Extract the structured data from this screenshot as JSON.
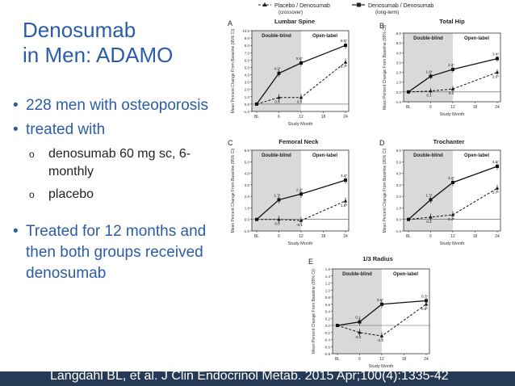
{
  "slide": {
    "title_line1": "Denosumab",
    "title_line2": "in Men: ADAMO",
    "bullets": [
      "228 men with osteoporosis",
      "treated with",
      "Treated for 12 months and then both groups received denosumab"
    ],
    "sub_bullets": [
      "denosumab 60 mg sc, 6-monthly",
      "placebo"
    ],
    "citation": "Langdahl BL, et al. J Clin Endocrinol Metab. 2015 Apr;100(4):1335-42"
  },
  "legend": {
    "placebo": "Placebo / Denosumab",
    "placebo_sub": "(crossover)",
    "denosumab": "Denosumab / Denosumab",
    "denosumab_sub": "(long-term)"
  },
  "chart_data": [
    {
      "type": "line",
      "panel": "A",
      "title": "Lumbar Spine",
      "xlabel": "Study Month",
      "ylabel": "Mean Percent Change From Baseline (95% CI)",
      "x": [
        "BL",
        "6",
        "12",
        "18",
        "24"
      ],
      "ylim": [
        -1,
        10
      ],
      "yticks": [
        -1,
        0,
        1,
        2,
        3,
        4,
        5,
        6,
        7,
        8,
        9,
        10
      ],
      "phase_labels": [
        "Double-blind",
        "Open-label"
      ],
      "series": [
        {
          "name": "Placebo / Denosumab",
          "x": [
            0,
            6,
            12,
            24
          ],
          "y": [
            0,
            0.9,
            0.9,
            5.7
          ],
          "labels": [
            "",
            "0.9",
            "0.9",
            "5.7*"
          ]
        },
        {
          "name": "Denosumab / Denosumab",
          "x": [
            0,
            6,
            12,
            24
          ],
          "y": [
            0,
            4.2,
            5.6,
            8.0
          ],
          "labels": [
            "",
            "4.2*",
            "5.6*",
            "8.0*"
          ]
        }
      ]
    },
    {
      "type": "line",
      "panel": "B",
      "title": "Total Hip",
      "xlabel": "Study Month",
      "ylabel": "Mean Percent Change From Baseline (95% CI)",
      "x": [
        "BL",
        "6",
        "12",
        "18",
        "24"
      ],
      "ylim": [
        -1,
        6
      ],
      "yticks": [
        -1,
        0,
        1,
        2,
        3,
        4,
        5,
        6
      ],
      "phase_labels": [
        "Double-blind",
        "Open-label"
      ],
      "series": [
        {
          "name": "Placebo / Denosumab",
          "x": [
            0,
            6,
            12,
            24
          ],
          "y": [
            0,
            0.1,
            0.3,
            2.0
          ],
          "labels": [
            "",
            "0.1",
            "0.3",
            "2.0*"
          ]
        },
        {
          "name": "Denosumab / Denosumab",
          "x": [
            0,
            6,
            12,
            24
          ],
          "y": [
            0,
            1.6,
            2.3,
            3.4
          ],
          "labels": [
            "",
            "1.6*",
            "2.3*",
            "3.4*"
          ]
        }
      ]
    },
    {
      "type": "line",
      "panel": "C",
      "title": "Femoral Neck",
      "xlabel": "Study Month",
      "ylabel": "Mean Percent Change From Baseline (95% CI)",
      "x": [
        "BL",
        "6",
        "12",
        "18",
        "24"
      ],
      "ylim": [
        -1,
        6
      ],
      "yticks": [
        -1,
        0,
        1,
        2,
        3,
        4,
        5,
        6
      ],
      "phase_labels": [
        "Double-blind",
        "Open-label"
      ],
      "series": [
        {
          "name": "Placebo / Denosumab",
          "x": [
            0,
            6,
            12,
            24
          ],
          "y": [
            0,
            0.0,
            -0.1,
            1.6
          ],
          "labels": [
            "",
            "0.0",
            "-0.1",
            "1.6*"
          ]
        },
        {
          "name": "Denosumab / Denosumab",
          "x": [
            0,
            6,
            12,
            24
          ],
          "y": [
            0,
            1.7,
            2.2,
            3.4
          ],
          "labels": [
            "",
            "1.7*",
            "2.2*",
            "3.4*"
          ]
        }
      ]
    },
    {
      "type": "line",
      "panel": "D",
      "title": "Trochanter",
      "xlabel": "Study Month",
      "ylabel": "Mean Percent Change From Baseline (95% CI)",
      "x": [
        "BL",
        "6",
        "12",
        "18",
        "24"
      ],
      "ylim": [
        -1,
        6
      ],
      "yticks": [
        -1,
        0,
        1,
        2,
        3,
        4,
        5,
        6
      ],
      "phase_labels": [
        "Double-blind",
        "Open-label"
      ],
      "series": [
        {
          "name": "Placebo / Denosumab",
          "x": [
            0,
            6,
            12,
            24
          ],
          "y": [
            0,
            0.2,
            0.4,
            2.7
          ],
          "labels": [
            "",
            "0.2",
            "0.4*",
            "2.7*"
          ]
        },
        {
          "name": "Denosumab / Denosumab",
          "x": [
            0,
            6,
            12,
            24
          ],
          "y": [
            0,
            1.7,
            3.2,
            4.6
          ],
          "labels": [
            "",
            "1.7*",
            "3.2*",
            "4.6*"
          ]
        }
      ]
    },
    {
      "type": "line",
      "panel": "E",
      "title": "1/3 Radius",
      "xlabel": "Study Month",
      "ylabel": "Mean Percent Change From Baseline (95% CI)",
      "x": [
        "BL",
        "6",
        "12",
        "18",
        "24"
      ],
      "ylim": [
        -0.8,
        1.6
      ],
      "yticks": [
        -0.8,
        -0.6,
        -0.4,
        -0.2,
        0.0,
        0.2,
        0.4,
        0.6,
        0.8,
        1.0,
        1.2,
        1.4,
        1.6
      ],
      "phase_labels": [
        "Double-blind",
        "Open-label"
      ],
      "series": [
        {
          "name": "Placebo / Denosumab",
          "x": [
            0,
            6,
            12,
            24
          ],
          "y": [
            0,
            -0.2,
            -0.3,
            0.6
          ],
          "labels": [
            "",
            "-0.2",
            "-0.3",
            "0.6*"
          ]
        },
        {
          "name": "Denosumab / Denosumab",
          "x": [
            0,
            6,
            12,
            24
          ],
          "y": [
            0,
            0.1,
            0.6,
            0.7
          ],
          "labels": [
            "",
            "0.1",
            "0.6*",
            "0.7*"
          ]
        }
      ]
    }
  ]
}
